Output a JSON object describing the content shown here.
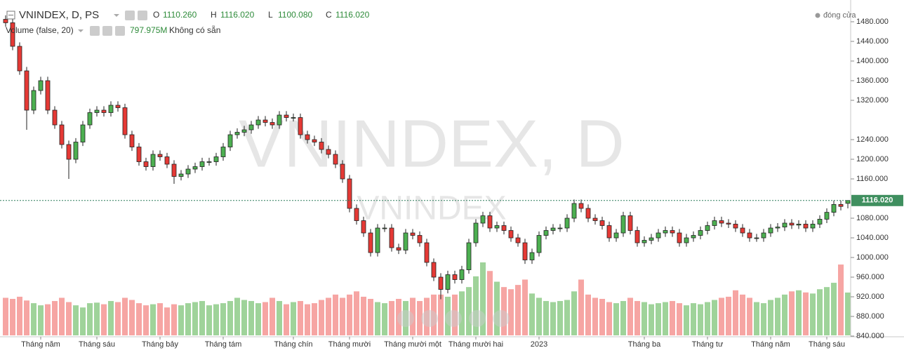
{
  "chart_data": {
    "type": "candlestick",
    "title": "VNINDEX, D, PS",
    "ohlc_names": [
      "O",
      "H",
      "L",
      "C"
    ],
    "ohlc_labels": [
      "1110.260",
      "1116.020",
      "1100.080",
      "1116.020"
    ],
    "volume_title": "Volume (false, 20)",
    "volume_label": "797.975M",
    "volume_status": "Không có sẵn",
    "legend_text": "đóng cửa",
    "watermark": "VNINDEX, D",
    "watermark_sub": "VNINDEX",
    "last_price_label": "1116.020",
    "categories": [
      null,
      null,
      null,
      null,
      null,
      "Tháng năm",
      null,
      null,
      null,
      null,
      null,
      null,
      null,
      "Tháng sáu",
      null,
      null,
      null,
      null,
      null,
      null,
      null,
      null,
      "Tháng bảy",
      null,
      null,
      null,
      null,
      null,
      null,
      null,
      null,
      "Tháng tám",
      null,
      null,
      null,
      null,
      null,
      null,
      null,
      null,
      null,
      "Tháng chín",
      null,
      null,
      null,
      null,
      null,
      null,
      null,
      "Tháng mười",
      null,
      null,
      null,
      null,
      null,
      null,
      null,
      null,
      "Tháng mười một",
      null,
      null,
      null,
      null,
      null,
      null,
      null,
      null,
      "Tháng mười hai",
      null,
      null,
      null,
      null,
      null,
      null,
      null,
      null,
      "2023",
      null,
      null,
      null,
      null,
      null,
      null,
      null,
      null,
      null,
      null,
      null,
      null,
      null,
      null,
      "Tháng ba",
      null,
      null,
      null,
      null,
      null,
      null,
      null,
      null,
      "Tháng tư",
      null,
      null,
      null,
      null,
      null,
      null,
      null,
      null,
      "Tháng năm",
      null,
      null,
      null,
      null,
      null,
      null,
      null,
      "Tháng sáu",
      null,
      null,
      null
    ],
    "open": [
      1485,
      1478,
      1430,
      1380,
      1300,
      1340,
      1360,
      1300,
      1270,
      1230,
      1200,
      1235,
      1270,
      1295,
      1300,
      1295,
      1310,
      1305,
      1250,
      1225,
      1195,
      1185,
      1210,
      1205,
      1190,
      1165,
      1170,
      1180,
      1185,
      1195,
      1195,
      1205,
      1225,
      1250,
      1255,
      1260,
      1270,
      1280,
      1275,
      1270,
      1290,
      1285,
      1285,
      1250,
      1240,
      1235,
      1220,
      1210,
      1190,
      1160,
      1100,
      1075,
      1050,
      1010,
      1060,
      1060,
      1020,
      1015,
      1050,
      1045,
      1030,
      990,
      960,
      935,
      965,
      955,
      975,
      1030,
      1070,
      1085,
      1060,
      1065,
      1055,
      1040,
      1030,
      995,
      1010,
      1045,
      1055,
      1060,
      1060,
      1080,
      1110,
      1100,
      1080,
      1075,
      1065,
      1040,
      1050,
      1085,
      1055,
      1030,
      1035,
      1040,
      1050,
      1055,
      1050,
      1030,
      1040,
      1045,
      1055,
      1065,
      1075,
      1070,
      1068,
      1060,
      1050,
      1040,
      1040,
      1050,
      1060,
      1062,
      1070,
      1066,
      1068,
      1060,
      1068,
      1078,
      1092,
      1108,
      1110.26
    ],
    "high": [
      1493,
      1486,
      1438,
      1388,
      1348,
      1368,
      1368,
      1308,
      1278,
      1238,
      1243,
      1278,
      1303,
      1308,
      1308,
      1318,
      1318,
      1313,
      1258,
      1233,
      1203,
      1218,
      1218,
      1213,
      1198,
      1178,
      1188,
      1193,
      1203,
      1203,
      1213,
      1233,
      1258,
      1263,
      1268,
      1278,
      1288,
      1288,
      1283,
      1298,
      1298,
      1293,
      1293,
      1258,
      1248,
      1243,
      1228,
      1218,
      1198,
      1168,
      1108,
      1083,
      1058,
      1068,
      1068,
      1068,
      1028,
      1058,
      1058,
      1053,
      1038,
      998,
      968,
      973,
      973,
      983,
      1038,
      1078,
      1093,
      1093,
      1073,
      1073,
      1063,
      1048,
      1038,
      1018,
      1053,
      1063,
      1068,
      1068,
      1088,
      1118,
      1118,
      1108,
      1088,
      1083,
      1073,
      1058,
      1093,
      1093,
      1063,
      1043,
      1048,
      1058,
      1063,
      1063,
      1058,
      1048,
      1053,
      1063,
      1073,
      1083,
      1083,
      1078,
      1076,
      1068,
      1058,
      1048,
      1058,
      1068,
      1070,
      1078,
      1078,
      1076,
      1076,
      1076,
      1086,
      1100,
      1116,
      1116,
      1116.02
    ],
    "low": [
      1470,
      1422,
      1372,
      1260,
      1292,
      1332,
      1292,
      1262,
      1222,
      1160,
      1192,
      1227,
      1262,
      1287,
      1287,
      1287,
      1297,
      1242,
      1217,
      1187,
      1177,
      1177,
      1197,
      1182,
      1150,
      1157,
      1162,
      1172,
      1177,
      1187,
      1187,
      1197,
      1217,
      1242,
      1247,
      1252,
      1262,
      1267,
      1262,
      1262,
      1277,
      1277,
      1242,
      1232,
      1227,
      1212,
      1202,
      1182,
      1152,
      1092,
      1067,
      1042,
      1002,
      1002,
      1052,
      1012,
      1007,
      1007,
      1037,
      1022,
      982,
      952,
      915,
      927,
      947,
      947,
      967,
      1022,
      1062,
      1052,
      1052,
      1047,
      1032,
      1022,
      987,
      987,
      1002,
      1037,
      1047,
      1052,
      1052,
      1072,
      1092,
      1072,
      1067,
      1057,
      1032,
      1032,
      1042,
      1047,
      1022,
      1022,
      1027,
      1032,
      1042,
      1042,
      1022,
      1022,
      1032,
      1037,
      1047,
      1057,
      1062,
      1060,
      1052,
      1042,
      1032,
      1032,
      1032,
      1042,
      1052,
      1054,
      1058,
      1058,
      1052,
      1052,
      1060,
      1070,
      1084,
      1096,
      1100.08
    ],
    "close": [
      1478,
      1430,
      1380,
      1300,
      1340,
      1360,
      1300,
      1270,
      1230,
      1200,
      1235,
      1270,
      1295,
      1300,
      1295,
      1310,
      1305,
      1250,
      1225,
      1195,
      1185,
      1210,
      1205,
      1190,
      1165,
      1170,
      1180,
      1185,
      1195,
      1195,
      1205,
      1225,
      1250,
      1255,
      1260,
      1270,
      1280,
      1275,
      1270,
      1290,
      1285,
      1285,
      1250,
      1240,
      1235,
      1220,
      1210,
      1190,
      1160,
      1100,
      1075,
      1050,
      1010,
      1060,
      1060,
      1020,
      1015,
      1050,
      1045,
      1030,
      990,
      960,
      935,
      965,
      955,
      975,
      1030,
      1070,
      1085,
      1060,
      1065,
      1055,
      1040,
      1030,
      995,
      1010,
      1045,
      1055,
      1060,
      1060,
      1080,
      1110,
      1100,
      1080,
      1075,
      1065,
      1040,
      1050,
      1085,
      1055,
      1030,
      1035,
      1040,
      1050,
      1055,
      1050,
      1030,
      1040,
      1045,
      1055,
      1065,
      1075,
      1070,
      1068,
      1060,
      1050,
      1040,
      1040,
      1050,
      1060,
      1062,
      1070,
      1066,
      1068,
      1060,
      1068,
      1078,
      1092,
      1108,
      1104,
      1116.02
    ],
    "volume": [
      700,
      680,
      720,
      650,
      600,
      560,
      580,
      640,
      700,
      620,
      560,
      520,
      600,
      610,
      580,
      640,
      620,
      700,
      660,
      600,
      560,
      580,
      600,
      520,
      580,
      560,
      600,
      620,
      640,
      560,
      580,
      600,
      640,
      700,
      660,
      640,
      600,
      620,
      700,
      640,
      580,
      620,
      640,
      580,
      600,
      660,
      700,
      760,
      700,
      760,
      820,
      720,
      680,
      620,
      600,
      640,
      680,
      640,
      700,
      640,
      700,
      760,
      760,
      720,
      760,
      820,
      900,
      1100,
      1360,
      1200,
      1000,
      900,
      860,
      940,
      1040,
      780,
      700,
      640,
      620,
      640,
      660,
      820,
      1040,
      760,
      700,
      680,
      620,
      600,
      640,
      700,
      640,
      620,
      580,
      600,
      620,
      640,
      600,
      560,
      600,
      580,
      620,
      660,
      700,
      720,
      840,
      760,
      700,
      620,
      600,
      660,
      700,
      760,
      820,
      840,
      800,
      780,
      860,
      900,
      980,
      1320,
      797.975
    ],
    "up_color": "#4caf50",
    "down_color": "#e53935",
    "volume_up_color": "#9fd39a",
    "volume_down_color": "#f6a5a3",
    "ylim": [
      838.6,
      1524.3
    ],
    "yticks": [
      {
        "value": 1480,
        "label": "1480.000"
      },
      {
        "value": 1440,
        "label": "1440.000"
      },
      {
        "value": 1400,
        "label": "1400.000"
      },
      {
        "value": 1360,
        "label": "1360.000"
      },
      {
        "value": 1320,
        "label": "1320.000"
      },
      {
        "value": 1240,
        "label": "1240.000"
      },
      {
        "value": 1200,
        "label": "1200.000"
      },
      {
        "value": 1160,
        "label": "1160.000"
      },
      {
        "value": 1080,
        "label": "1080.000"
      },
      {
        "value": 1040,
        "label": "1040.000"
      },
      {
        "value": 1000,
        "label": "1000.000"
      },
      {
        "value": 960,
        "label": "960.000"
      },
      {
        "value": 920,
        "label": "920.000"
      },
      {
        "value": 880,
        "label": "880.000"
      },
      {
        "value": 840,
        "label": "840.000"
      }
    ]
  }
}
